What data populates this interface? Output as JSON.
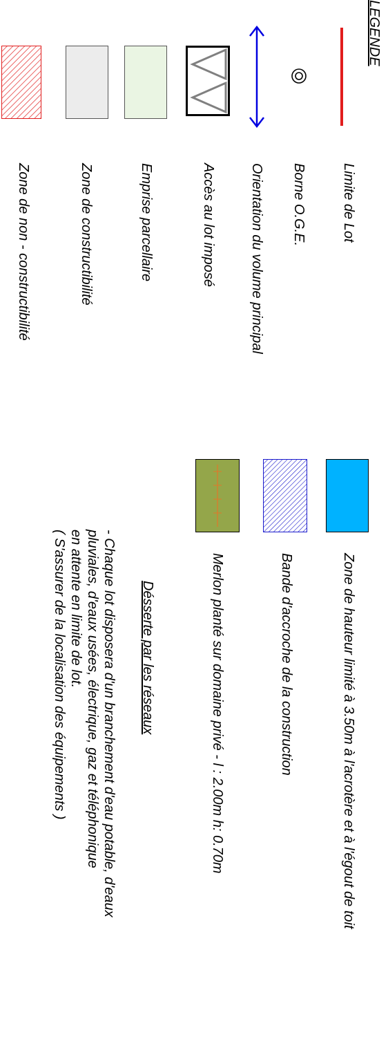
{
  "legend": {
    "title": "LEGENDE",
    "items": [
      {
        "label": "Limite de Lot",
        "color": "#e11d1d"
      },
      {
        "label": "Borne O.G.E."
      },
      {
        "label": "Orientation du volume principal",
        "color": "#0000e0"
      },
      {
        "label": "Accès au lot imposé",
        "color": "#808080"
      },
      {
        "label": "Emprise parcellaire",
        "color": "#eaf5e3"
      },
      {
        "label": "Zone de constructibilité",
        "color": "#ececec"
      },
      {
        "label": "Zone de non - constructibilité",
        "color": "#e11d1d"
      }
    ],
    "items2": [
      {
        "label": "Zone de hauteur limité à 3.50m à l'acrotère et à l'égout de toit",
        "color": "#00b2ff"
      },
      {
        "label": "Bande d'accroche de la construction",
        "color": "#1a1acc"
      },
      {
        "label": "Merlon planté sur domaine privé - l : 2.00m h: 0.70m",
        "color": "#94a64a"
      }
    ]
  },
  "reseaux": {
    "title": "Désserte par les réseaux",
    "lines": [
      "- Chaque lot disposera d'un branchement d'eau potable, d'eaux",
      "  pluviales, d'eaux usées, électrique, gaz et téléphonique",
      "  en attente en limite de lot.",
      "( S'assurer de la localisation des équipements )"
    ]
  }
}
